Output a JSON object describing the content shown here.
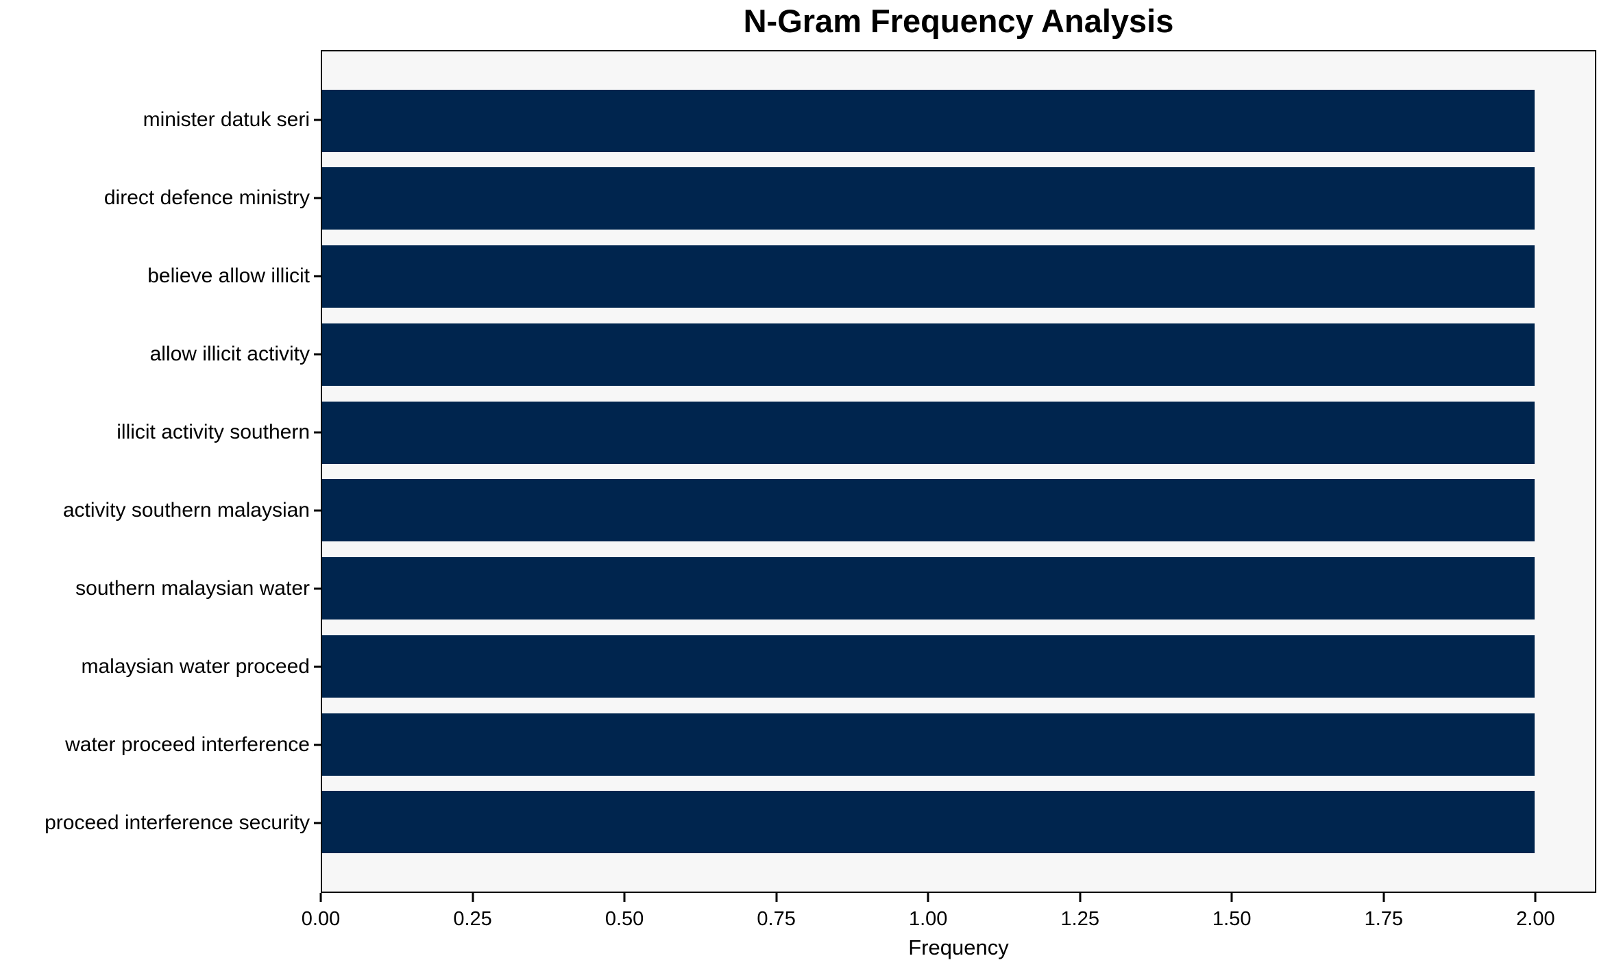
{
  "chart_data": {
    "type": "bar",
    "orientation": "horizontal",
    "title": "N-Gram Frequency Analysis",
    "xlabel": "Frequency",
    "ylabel": "",
    "categories": [
      "minister datuk seri",
      "direct defence ministry",
      "believe allow illicit",
      "allow illicit activity",
      "illicit activity southern",
      "activity southern malaysian",
      "southern malaysian water",
      "malaysian water proceed",
      "water proceed interference",
      "proceed interference security"
    ],
    "values": [
      2,
      2,
      2,
      2,
      2,
      2,
      2,
      2,
      2,
      2
    ],
    "xlim": [
      0,
      2.1
    ],
    "xticks": [
      0,
      0.25,
      0.5,
      0.75,
      1.0,
      1.25,
      1.5,
      1.75,
      2.0
    ],
    "xtick_labels": [
      "0.00",
      "0.25",
      "0.50",
      "0.75",
      "1.00",
      "1.25",
      "1.50",
      "1.75",
      "2.00"
    ],
    "bar_height_frac": 0.8,
    "grid": false,
    "legend": false,
    "colors": {
      "bar": "#00254e",
      "plot_background": "#f7f7f7",
      "figure_background": "#ffffff",
      "axis": "#000000",
      "text": "#000000"
    }
  }
}
